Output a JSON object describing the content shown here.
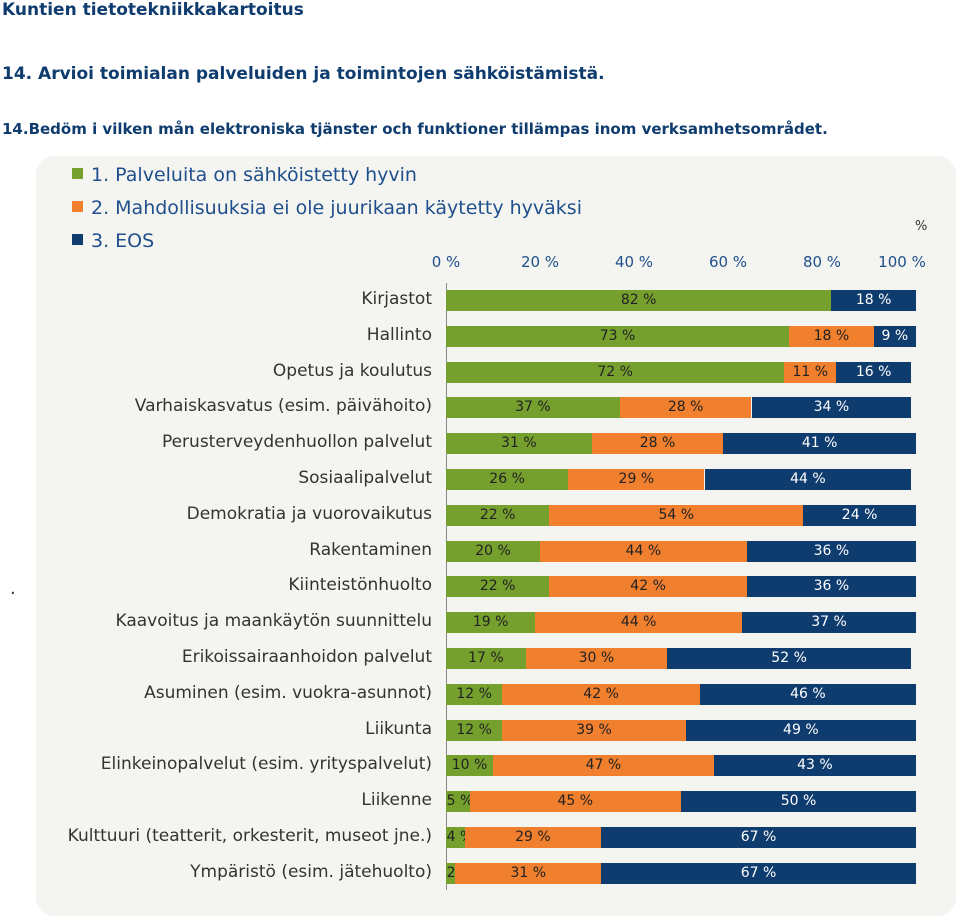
{
  "header": {
    "site_title": "Kuntien tietotekniikkakartoitus",
    "question_fi": "14. Arvioi toimialan palveluiden ja toimintojen sähköistämistä.",
    "question_sv": "14.Bedöm i vilken mån elektroniska tjänster och funktioner tillämpas inom verksamhetsområdet."
  },
  "chart_data": {
    "type": "bar",
    "orientation": "horizontal",
    "stacked": true,
    "title": "14. Arvioi toimialan palveluiden ja toimintojen sähköistämistä.",
    "xlabel": "%",
    "xlim": [
      0,
      100
    ],
    "x_ticks": [
      "0 %",
      "20 %",
      "40 %",
      "60 %",
      "80 %",
      "100 %"
    ],
    "legend_position": "top-left",
    "categories": [
      "Kirjastot",
      "Hallinto",
      "Opetus ja koulutus",
      "Varhaiskasvatus (esim. päivähoito)",
      "Perusterveydenhuollon palvelut",
      "Sosiaalipalvelut",
      "Demokratia ja vuorovaikutus",
      "Rakentaminen",
      "Kiinteistönhuolto",
      "Kaavoitus ja maankäytön suunnittelu",
      "Erikoissairaanhoidon palvelut",
      "Asuminen (esim. vuokra-asunnot)",
      "Liikunta",
      "Elinkeinopalvelut (esim. yrityspalvelut)",
      "Liikenne",
      "Kulttuuri (teatterit, orkesterit, museot jne.)",
      "Ympäristö (esim. jätehuolto)"
    ],
    "series": [
      {
        "name": "1. Palveluita on sähköistetty hyvin",
        "color": "#76a02e",
        "values": [
          82,
          73,
          72,
          37,
          31,
          26,
          22,
          20,
          22,
          19,
          17,
          12,
          12,
          10,
          5,
          4,
          2
        ]
      },
      {
        "name": "2. Mahdollisuuksia ei ole juurikaan käytetty hyväksi",
        "color": "#f07f2e",
        "values": [
          0,
          18,
          11,
          28,
          28,
          29,
          54,
          44,
          42,
          44,
          30,
          42,
          39,
          47,
          45,
          29,
          31
        ]
      },
      {
        "name": "3. EOS",
        "color": "#0f3c6e",
        "values": [
          18,
          9,
          16,
          34,
          41,
          44,
          24,
          36,
          36,
          37,
          52,
          46,
          49,
          43,
          50,
          67,
          67
        ]
      }
    ],
    "value_suffix": " %"
  },
  "misc": {
    "dot": "."
  }
}
